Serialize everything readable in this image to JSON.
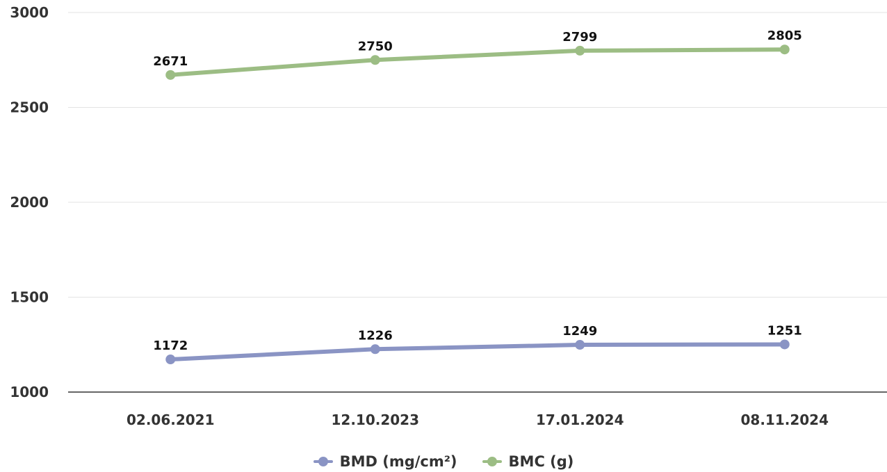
{
  "chart_data": {
    "type": "line",
    "categories": [
      "02.06.2021",
      "12.10.2023",
      "17.01.2024",
      "08.11.2024"
    ],
    "series": [
      {
        "name": "BMD (mg/cm²)",
        "values": [
          1172,
          1226,
          1249,
          1251
        ],
        "color": "#8a94c4"
      },
      {
        "name": "BMC (g)",
        "values": [
          2671,
          2750,
          2799,
          2805
        ],
        "color": "#9cbd84"
      }
    ],
    "ylim": [
      1000,
      3000
    ],
    "yticks": [
      1000,
      1500,
      2000,
      2500,
      3000
    ],
    "grid": true,
    "legend": "bottom"
  }
}
